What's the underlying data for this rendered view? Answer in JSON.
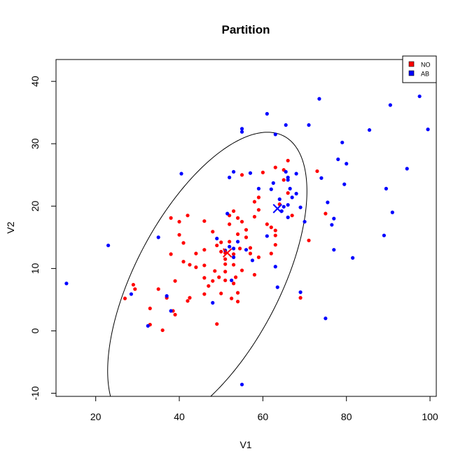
{
  "chart_data": {
    "type": "scatter",
    "title": "Partition",
    "xlabel": "V1",
    "ylabel": "V2",
    "xlim": [
      10.5,
      101.5
    ],
    "ylim": [
      -10.5,
      43.5
    ],
    "x_ticks": [
      20,
      40,
      60,
      80,
      100
    ],
    "y_ticks": [
      -10,
      0,
      10,
      20,
      30,
      40
    ],
    "legend": {
      "position": "top-right",
      "entries": [
        "NO",
        "AB"
      ]
    },
    "series": [
      {
        "name": "NO",
        "color": "#ff0000",
        "points": [
          [
            27,
            5.2
          ],
          [
            29,
            7.4
          ],
          [
            29.4,
            6.7
          ],
          [
            33,
            3.6
          ],
          [
            33,
            1
          ],
          [
            35,
            6.7
          ],
          [
            36,
            0.1
          ],
          [
            37,
            5.3
          ],
          [
            38,
            12.3
          ],
          [
            38,
            18.1
          ],
          [
            38.5,
            3.2
          ],
          [
            39,
            2.6
          ],
          [
            39,
            8
          ],
          [
            40,
            15.4
          ],
          [
            40,
            17.5
          ],
          [
            41,
            11.1
          ],
          [
            41,
            14.1
          ],
          [
            42,
            18.5
          ],
          [
            42,
            4.8
          ],
          [
            42.5,
            5.3
          ],
          [
            42.5,
            10.6
          ],
          [
            44,
            10.2
          ],
          [
            44,
            12.4
          ],
          [
            46,
            17.6
          ],
          [
            46,
            13
          ],
          [
            46,
            10.5
          ],
          [
            46,
            8.5
          ],
          [
            46,
            5.9
          ],
          [
            47,
            7.2
          ],
          [
            48,
            8
          ],
          [
            48,
            15.9
          ],
          [
            48.5,
            9.6
          ],
          [
            49,
            1.1
          ],
          [
            49,
            13.7
          ],
          [
            49.5,
            8.6
          ],
          [
            50,
            14.2
          ],
          [
            50,
            12.7
          ],
          [
            50,
            6
          ],
          [
            51,
            8.1
          ],
          [
            51,
            9.5
          ],
          [
            51,
            10.7
          ],
          [
            51,
            11.5
          ],
          [
            51,
            12.5
          ],
          [
            52,
            14.3
          ],
          [
            52,
            17.1
          ],
          [
            52,
            18.5
          ],
          [
            52.5,
            5.2
          ],
          [
            53,
            10.6
          ],
          [
            53,
            19.2
          ],
          [
            53,
            12.3
          ],
          [
            53.5,
            8.6
          ],
          [
            53,
            7.6
          ],
          [
            54,
            4.7
          ],
          [
            54,
            6.1
          ],
          [
            54,
            15.5
          ],
          [
            54,
            18.1
          ],
          [
            54.5,
            13.2
          ],
          [
            55,
            9.7
          ],
          [
            55,
            17.5
          ],
          [
            55,
            25
          ],
          [
            56,
            16.2
          ],
          [
            56,
            15
          ],
          [
            57,
            12.4
          ],
          [
            57,
            13.3
          ],
          [
            58,
            20.7
          ],
          [
            58,
            18.3
          ],
          [
            58,
            9
          ],
          [
            59,
            11.8
          ],
          [
            59,
            19.4
          ],
          [
            59,
            21.4
          ],
          [
            60,
            25.4
          ],
          [
            61,
            17.1
          ],
          [
            62,
            12.4
          ],
          [
            62,
            16.6
          ],
          [
            63,
            13.8
          ],
          [
            63,
            15.3
          ],
          [
            63,
            26.2
          ],
          [
            63,
            16.1
          ],
          [
            64,
            20.3
          ],
          [
            65,
            25.8
          ],
          [
            65,
            24.2
          ],
          [
            66,
            27.3
          ],
          [
            66,
            22.1
          ],
          [
            67,
            18.5
          ],
          [
            69,
            5.3
          ],
          [
            71,
            14.5
          ],
          [
            73,
            25.6
          ],
          [
            75,
            18.8
          ]
        ]
      },
      {
        "name": "AB",
        "color": "#0000ff",
        "points": [
          [
            13,
            7.6
          ],
          [
            23,
            13.7
          ],
          [
            28.5,
            5.9
          ],
          [
            32.5,
            0.8
          ],
          [
            35,
            15
          ],
          [
            37,
            5.6
          ],
          [
            38,
            3.2
          ],
          [
            40.5,
            25.2
          ],
          [
            48,
            4.5
          ],
          [
            49,
            14.8
          ],
          [
            51,
            12.9
          ],
          [
            51.5,
            18.8
          ],
          [
            52,
            13.5
          ],
          [
            52,
            24.6
          ],
          [
            52.5,
            8.1
          ],
          [
            53,
            13.2
          ],
          [
            53,
            11.8
          ],
          [
            53,
            25.5
          ],
          [
            54,
            14.3
          ],
          [
            55,
            31.9
          ],
          [
            55,
            32.4
          ],
          [
            55,
            -8.6
          ],
          [
            56,
            13
          ],
          [
            57,
            25.3
          ],
          [
            57.5,
            11.3
          ],
          [
            59,
            22.8
          ],
          [
            61,
            34.8
          ],
          [
            61,
            15.2
          ],
          [
            62,
            22.7
          ],
          [
            62.5,
            23.7
          ],
          [
            63,
            10.3
          ],
          [
            63,
            31.5
          ],
          [
            63.5,
            7
          ],
          [
            64,
            21.1
          ],
          [
            64.5,
            19.2
          ],
          [
            65,
            19.9
          ],
          [
            65.5,
            33
          ],
          [
            65.5,
            25.5
          ],
          [
            66,
            24.6
          ],
          [
            66,
            24.2
          ],
          [
            66,
            20.2
          ],
          [
            66,
            18.2
          ],
          [
            66.5,
            22.8
          ],
          [
            67,
            21.4
          ],
          [
            68,
            22
          ],
          [
            68,
            25.2
          ],
          [
            69,
            19.8
          ],
          [
            69,
            6.2
          ],
          [
            70,
            17.5
          ],
          [
            71,
            33
          ],
          [
            73.5,
            37.2
          ],
          [
            74,
            24.5
          ],
          [
            75,
            2
          ],
          [
            75.5,
            20.6
          ],
          [
            76.5,
            17
          ],
          [
            77,
            18
          ],
          [
            77,
            13
          ],
          [
            78,
            27.5
          ],
          [
            79,
            30.2
          ],
          [
            79.5,
            23.5
          ],
          [
            80,
            26.8
          ],
          [
            81.5,
            11.7
          ],
          [
            85.5,
            32.2
          ],
          [
            89,
            15.3
          ],
          [
            89.5,
            22.8
          ],
          [
            90.5,
            36.2
          ],
          [
            91,
            19
          ],
          [
            94.5,
            26
          ],
          [
            95,
            41.3
          ],
          [
            97.5,
            37.6
          ],
          [
            99.5,
            32.3
          ]
        ]
      }
    ],
    "centroids": [
      {
        "name": "NO",
        "x": 51.5,
        "y": 12.5,
        "color": "#ff0000"
      },
      {
        "name": "AB",
        "x": 63.5,
        "y": 19.6,
        "color": "#0000ff"
      }
    ],
    "ellipse": {
      "center": [
        46.7,
        8.0
      ],
      "semi_major": 30.2,
      "semi_minor": 15.0,
      "angle_deg": 45,
      "clip_at_ylim_min": true,
      "color": "#000000"
    }
  }
}
